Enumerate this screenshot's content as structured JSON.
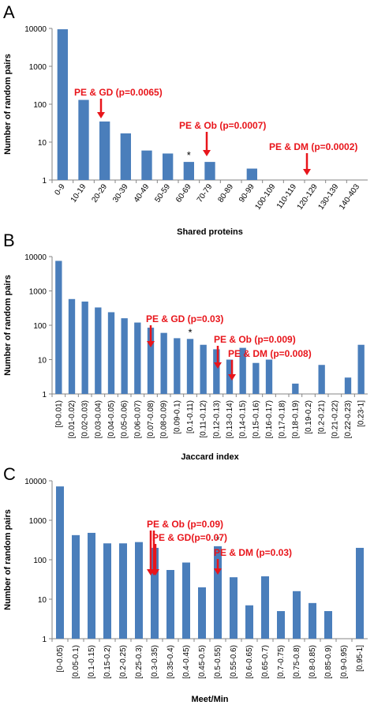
{
  "colors": {
    "bar": "#4a7ebb",
    "arrow": "#e8151b",
    "axis": "#868686"
  },
  "chart_data": [
    {
      "panel": "A",
      "type": "bar",
      "scale": "log",
      "ylim": [
        1,
        10000
      ],
      "yticks": [
        "1",
        "10",
        "100",
        "1000",
        "10000"
      ],
      "ylabel": "Number of random pairs",
      "xlabel": "Shared proteins",
      "categories": [
        "0-9",
        "10-19",
        "20-29",
        "30-39",
        "40-49",
        "50-59",
        "60-69",
        "70-79",
        "80-89",
        "90-99",
        "100-109",
        "110-119",
        "120-129",
        "130-139",
        "140-403"
      ],
      "values": [
        9500,
        130,
        35,
        17,
        6,
        5,
        3,
        3,
        null,
        2,
        null,
        null,
        null,
        null,
        null
      ],
      "annotations": [
        {
          "label": "PE & GD (p=0.0065)",
          "category_index": 2
        },
        {
          "label": "PE & Ob (p=0.0007)",
          "category_index": 7
        },
        {
          "label": "PE & DM (p=0.0002)",
          "category_index": 12
        }
      ],
      "star_index": 6,
      "star_text": "*"
    },
    {
      "panel": "B",
      "type": "bar",
      "scale": "log",
      "ylim": [
        1,
        10000
      ],
      "yticks": [
        "1",
        "10",
        "100",
        "1000",
        "10000"
      ],
      "ylabel": "Number of random pairs",
      "xlabel": "Jaccard index",
      "categories": [
        "[0-0.01)",
        "[0.01-0.02)",
        "[0.02-0.03)",
        "[0.03-0.04)",
        "[0.04-0.05)",
        "[0.05-0.06)",
        "[0.06-0.07)",
        "[0.07-0.08)",
        "[0.08-0.09)",
        "[0.09-0.1)",
        "[0.1-0.11)",
        "[0.11-0.12)",
        "[0.12-0.13)",
        "[0.13-0.14)",
        "[0.14-0.15)",
        "[0.15-0.16)",
        "[0.16-0.17)",
        "[0.17-0.18)",
        "[0.18-0.19)",
        "[0.19-0.2)",
        "[0.2-0.21)",
        "[0.21-0.22)",
        "[0.22-0.23)",
        "[0.23-1]"
      ],
      "values": [
        7500,
        580,
        490,
        330,
        240,
        160,
        120,
        85,
        60,
        42,
        40,
        27,
        20,
        10,
        22,
        8,
        10,
        null,
        2,
        null,
        7,
        null,
        3,
        27
      ],
      "annotations": [
        {
          "label": "PE & GD (p=0.03)",
          "category_index": 7
        },
        {
          "label": "PE & Ob (p=0.009)",
          "category_index": 13
        },
        {
          "label": "PE & DM (p=0.008)",
          "category_index": 14
        }
      ],
      "star_index": 10,
      "star_text": "*"
    },
    {
      "panel": "C",
      "type": "bar",
      "scale": "log",
      "ylim": [
        1,
        10000
      ],
      "yticks": [
        "1",
        "10",
        "100",
        "1000",
        "10000"
      ],
      "ylabel": "Number of random pairs",
      "xlabel": "Meet/Min",
      "categories": [
        "[0-0.05)",
        "[0.05-0.1)",
        "[0.1-0.15)",
        "[0.15-0.2)",
        "[0.2-0.25)",
        "[0.25-0.3)",
        "[0.3-0.35)",
        "[0.35-0.4)",
        "[0.4-0.45)",
        "[0.45-0.5)",
        "[0.5-0.55)",
        "[0.55-0.6)",
        "[0.6-0.65)",
        "[0.65-0.7)",
        "[0.7-0.75)",
        "[0.75-0.8)",
        "[0.8-0.85)",
        "[0.85-0.9)",
        "[0.9-0.95)",
        "[0.95-1]"
      ],
      "values": [
        7200,
        420,
        480,
        260,
        260,
        280,
        200,
        55,
        85,
        20,
        220,
        36,
        7,
        38,
        5,
        16,
        8,
        5,
        null,
        200
      ],
      "annotations": [
        {
          "label": "PE & Ob (p=0.09)",
          "category_index": 6
        },
        {
          "label": "PE & GD(p=0.07)",
          "category_index": 6
        },
        {
          "label": "PE & DM (p=0.03)",
          "category_index": 10
        }
      ],
      "star_index": 10,
      "star_text": "*"
    }
  ]
}
